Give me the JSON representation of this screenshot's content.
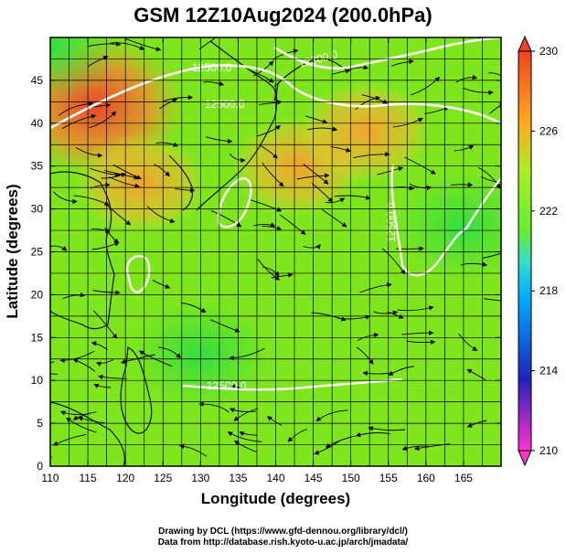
{
  "chart_data": {
    "type": "heatmap",
    "title": "GSM 12Z10Aug2024 (200.0hPa)",
    "xlabel": "Longitude (degrees)",
    "ylabel": "Latitude  (degrees)",
    "xlim": [
      110,
      170
    ],
    "ylim": [
      0,
      50
    ],
    "x_ticks": [
      "110",
      "115",
      "120",
      "125",
      "130",
      "135",
      "140",
      "145",
      "150",
      "155",
      "160",
      "165"
    ],
    "y_ticks": [
      "0",
      "5",
      "10",
      "15",
      "20",
      "25",
      "30",
      "35",
      "40",
      "45"
    ],
    "colorbar": {
      "min": 210,
      "max": 230,
      "ticks": [
        "210",
        "214",
        "218",
        "222",
        "226",
        "230"
      ],
      "stops": [
        "#ff33cc",
        "#2222bb",
        "#00aaff",
        "#33ddcc",
        "#66ee33",
        "#aaee22",
        "#ffaa22",
        "#ee4422"
      ]
    },
    "contours": [
      {
        "label": "12500.0"
      },
      {
        "label": "12300.0"
      },
      {
        "label": "12500.0"
      },
      {
        "label": "12500.0"
      },
      {
        "label": "12500.0"
      }
    ],
    "field_features": [
      {
        "name": "warm",
        "lon": 116,
        "lat": 42,
        "value": 229
      },
      {
        "name": "warm",
        "lon": 122,
        "lat": 33,
        "value": 227
      },
      {
        "name": "warm",
        "lon": 143,
        "lat": 35,
        "value": 226
      },
      {
        "name": "warm",
        "lon": 152,
        "lat": 39,
        "value": 225
      },
      {
        "name": "cool",
        "lon": 130,
        "lat": 13,
        "value": 221
      },
      {
        "name": "cool",
        "lon": 165,
        "lat": 28,
        "value": 221
      },
      {
        "name": "cool",
        "lon": 110,
        "lat": 49,
        "value": 219
      }
    ],
    "grid": true,
    "legend": "colorbar-right"
  },
  "credit": {
    "line1": "Drawing by DCL (https://www.gfd-dennou.org/library/dcl/)",
    "line2": "Data from http://database.rish.kyoto-u.ac.jp/arch/jmadata/"
  }
}
